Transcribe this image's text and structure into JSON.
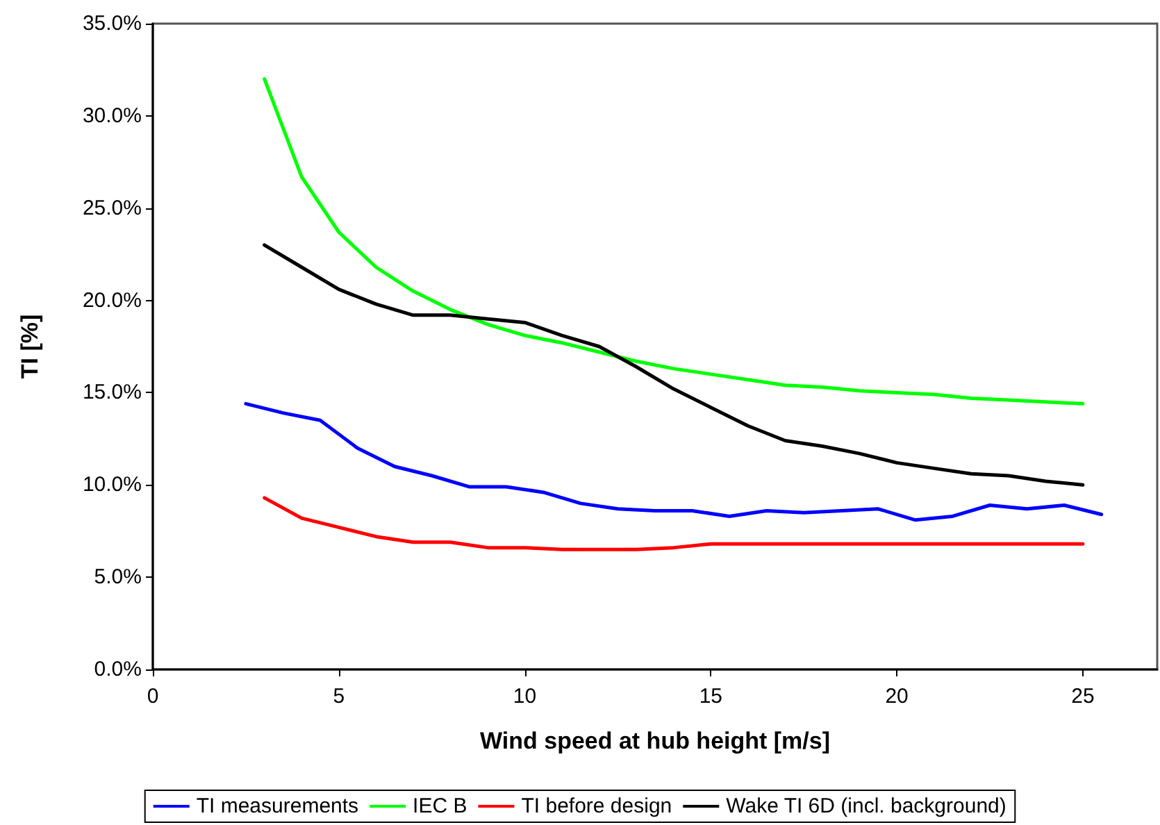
{
  "chart_data": {
    "type": "line",
    "xlabel": "Wind speed at hub height [m/s]",
    "ylabel": "TI [%]",
    "xlim": [
      0,
      27
    ],
    "xticks": [
      0,
      5,
      10,
      15,
      20,
      25
    ],
    "ylim": [
      0,
      35
    ],
    "yticks": [
      {
        "value": 0,
        "label": "0.0%"
      },
      {
        "value": 5,
        "label": "5.0%"
      },
      {
        "value": 10,
        "label": "10.0%"
      },
      {
        "value": 15,
        "label": "15.0%"
      },
      {
        "value": 20,
        "label": "20.0%"
      },
      {
        "value": 25,
        "label": "25.0%"
      },
      {
        "value": 30,
        "label": "30.0%"
      },
      {
        "value": 35,
        "label": "35.0%"
      }
    ],
    "grid": false,
    "legend": "bottom",
    "marker": "none",
    "line_style": "solid",
    "series": [
      {
        "name": "TI measurements",
        "color": "#0000ff",
        "x": [
          2.5,
          3.5,
          4.5,
          5.5,
          6.5,
          7.5,
          8.5,
          9.5,
          10.5,
          11.5,
          12.5,
          13.5,
          14.5,
          15.5,
          16.5,
          17.5,
          18.5,
          19.5,
          20.5,
          21.5,
          22.5,
          23.5,
          24.5,
          25.5
        ],
        "values": [
          14.4,
          13.9,
          13.5,
          12.0,
          11.0,
          10.5,
          9.9,
          9.9,
          9.6,
          9.0,
          8.7,
          8.6,
          8.6,
          8.3,
          8.6,
          8.5,
          8.6,
          8.7,
          8.1,
          8.3,
          8.9,
          8.7,
          8.9,
          8.4
        ]
      },
      {
        "name": "IEC B",
        "color": "#00ff00",
        "x": [
          3,
          4,
          5,
          6,
          7,
          8,
          9,
          10,
          11,
          12,
          13,
          14,
          15,
          16,
          17,
          18,
          19,
          20,
          21,
          22,
          23,
          24,
          25
        ],
        "values": [
          32.0,
          26.7,
          23.7,
          21.8,
          20.5,
          19.5,
          18.7,
          18.1,
          17.7,
          17.2,
          16.7,
          16.3,
          16.0,
          15.7,
          15.4,
          15.3,
          15.1,
          15.0,
          14.9,
          14.7,
          14.6,
          14.5,
          14.4
        ]
      },
      {
        "name": "TI before design",
        "color": "#ff0000",
        "x": [
          3,
          4,
          5,
          6,
          7,
          8,
          9,
          10,
          11,
          12,
          13,
          14,
          15,
          16,
          17,
          18,
          19,
          20,
          21,
          22,
          23,
          24,
          25
        ],
        "values": [
          9.3,
          8.2,
          7.7,
          7.2,
          6.9,
          6.9,
          6.6,
          6.6,
          6.5,
          6.5,
          6.5,
          6.6,
          6.8,
          6.8,
          6.8,
          6.8,
          6.8,
          6.8,
          6.8,
          6.8,
          6.8,
          6.8,
          6.8
        ]
      },
      {
        "name": "Wake TI 6D (incl. background)",
        "color": "#000000",
        "x": [
          3,
          4,
          5,
          6,
          7,
          8,
          9,
          10,
          11,
          12,
          13,
          14,
          15,
          16,
          17,
          18,
          19,
          20,
          21,
          22,
          23,
          24,
          25
        ],
        "values": [
          23.0,
          21.8,
          20.6,
          19.8,
          19.2,
          19.2,
          19.0,
          18.8,
          18.1,
          17.5,
          16.4,
          15.2,
          14.2,
          13.2,
          12.4,
          12.1,
          11.7,
          11.2,
          10.9,
          10.6,
          10.5,
          10.2,
          10.0
        ]
      }
    ]
  }
}
